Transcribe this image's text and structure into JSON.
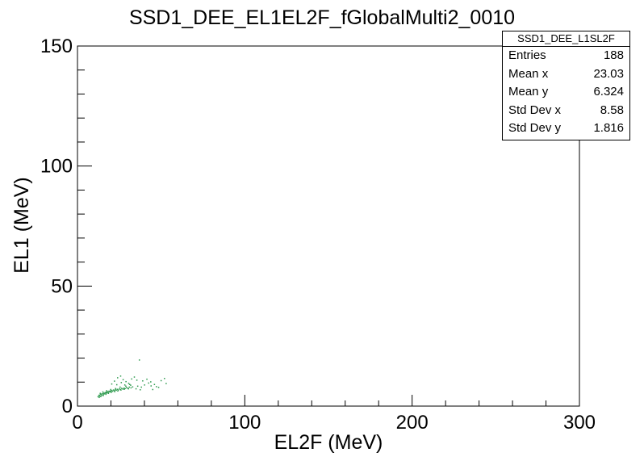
{
  "chart_data": {
    "type": "scatter",
    "title": "SSD1_DEE_EL1EL2F_fGlobalMulti2_0010",
    "xlabel": "EL2F (MeV)",
    "ylabel": "EL1 (MeV)",
    "xlim": [
      0,
      300
    ],
    "ylim": [
      0,
      150
    ],
    "x_ticks": [
      "0",
      "100",
      "200",
      "300"
    ],
    "y_ticks": [
      "0",
      "50",
      "100",
      "150"
    ],
    "marker_color": "#2e9a4e",
    "points": [
      [
        12.3,
        3.9
      ],
      [
        12.8,
        4.3
      ],
      [
        13.1,
        4.6
      ],
      [
        13.5,
        4.1
      ],
      [
        13.9,
        4.8
      ],
      [
        14.2,
        5.0
      ],
      [
        14.6,
        4.5
      ],
      [
        15.0,
        5.2
      ],
      [
        15.4,
        4.9
      ],
      [
        15.7,
        5.4
      ],
      [
        16.1,
        5.1
      ],
      [
        16.5,
        5.6
      ],
      [
        16.9,
        5.3
      ],
      [
        17.2,
        5.8
      ],
      [
        17.6,
        5.5
      ],
      [
        18.0,
        6.0
      ],
      [
        18.4,
        5.7
      ],
      [
        18.8,
        6.2
      ],
      [
        19.2,
        5.9
      ],
      [
        19.6,
        6.3
      ],
      [
        20.0,
        6.1
      ],
      [
        20.5,
        6.5
      ],
      [
        21.0,
        6.2
      ],
      [
        21.5,
        6.7
      ],
      [
        22.0,
        6.4
      ],
      [
        22.6,
        6.8
      ],
      [
        23.2,
        6.6
      ],
      [
        23.8,
        7.0
      ],
      [
        24.4,
        6.7
      ],
      [
        25.0,
        7.2
      ],
      [
        25.7,
        6.9
      ],
      [
        26.4,
        7.4
      ],
      [
        27.1,
        7.1
      ],
      [
        27.8,
        7.5
      ],
      [
        28.5,
        7.3
      ],
      [
        29.3,
        7.7
      ],
      [
        30.1,
        7.4
      ],
      [
        31.0,
        7.9
      ],
      [
        32.0,
        7.6
      ],
      [
        33.0,
        8.0
      ],
      [
        13.0,
        3.6
      ],
      [
        14.0,
        4.0
      ],
      [
        15.5,
        4.4
      ],
      [
        17.0,
        4.9
      ],
      [
        18.5,
        5.3
      ],
      [
        20.2,
        5.7
      ],
      [
        22.3,
        6.0
      ],
      [
        24.1,
        6.3
      ],
      [
        26.0,
        6.7
      ],
      [
        28.0,
        7.0
      ],
      [
        30.5,
        7.2
      ],
      [
        13.6,
        5.3
      ],
      [
        15.2,
        5.9
      ],
      [
        17.4,
        6.4
      ],
      [
        19.9,
        6.9
      ],
      [
        22.8,
        7.3
      ],
      [
        25.5,
        7.9
      ],
      [
        28.9,
        8.3
      ],
      [
        31.8,
        8.7
      ],
      [
        20.5,
        9.2
      ],
      [
        22.1,
        10.4
      ],
      [
        24.0,
        11.8
      ],
      [
        25.8,
        12.5
      ],
      [
        27.3,
        11.0
      ],
      [
        29.0,
        10.2
      ],
      [
        30.6,
        9.5
      ],
      [
        32.4,
        11.3
      ],
      [
        34.0,
        12.1
      ],
      [
        35.5,
        10.8
      ],
      [
        26.2,
        9.8
      ],
      [
        23.5,
        8.9
      ],
      [
        28.3,
        8.8
      ],
      [
        31.2,
        9.0
      ],
      [
        36.0,
        8.3
      ],
      [
        38.2,
        7.9
      ],
      [
        40.1,
        8.8
      ],
      [
        42.5,
        9.6
      ],
      [
        44.0,
        8.4
      ],
      [
        39.0,
        10.5
      ],
      [
        41.5,
        11.2
      ],
      [
        43.8,
        10.1
      ],
      [
        37.0,
        19.2
      ],
      [
        46.0,
        9.0
      ],
      [
        48.5,
        7.8
      ],
      [
        50.0,
        10.6
      ],
      [
        52.0,
        11.5
      ],
      [
        53.0,
        9.4
      ],
      [
        45.0,
        6.9
      ],
      [
        47.2,
        8.1
      ],
      [
        35.0,
        7.2
      ],
      [
        37.5,
        6.8
      ]
    ]
  },
  "stats": {
    "title": "SSD1_DEE_L1SL2F",
    "rows": [
      {
        "label": "Entries",
        "value": "188"
      },
      {
        "label": "Mean x",
        "value": "23.03"
      },
      {
        "label": "Mean y",
        "value": "6.324"
      },
      {
        "label": "Std Dev x",
        "value": "8.58"
      },
      {
        "label": "Std Dev y",
        "value": "1.816"
      }
    ]
  }
}
